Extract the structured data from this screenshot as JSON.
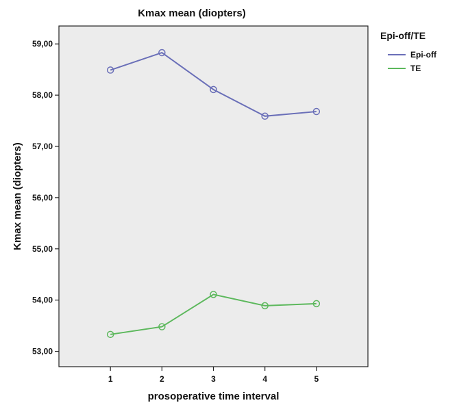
{
  "chart_data": {
    "type": "line",
    "title": "Kmax mean (diopters)",
    "xlabel": "prosoperative time interval",
    "ylabel": "Kmax mean (diopters)",
    "x": [
      1,
      2,
      3,
      4,
      5
    ],
    "x_tick_labels": [
      "1",
      "2",
      "3",
      "4",
      "5"
    ],
    "ylim": [
      52.7,
      59.35
    ],
    "y_ticks": [
      53,
      54,
      55,
      56,
      57,
      58,
      59
    ],
    "y_tick_labels": [
      "53,00",
      "54,00",
      "55,00",
      "56,00",
      "57,00",
      "58,00",
      "59,00"
    ],
    "grid": false,
    "legend": {
      "title": "Epi-off/TE",
      "placement": "right"
    },
    "series": [
      {
        "name": "Epi-off",
        "color": "#6a6fb8",
        "values": [
          58.49,
          58.83,
          58.11,
          57.59,
          57.68
        ]
      },
      {
        "name": "TE",
        "color": "#5cb85c",
        "values": [
          53.33,
          53.48,
          54.11,
          53.89,
          53.93
        ]
      }
    ]
  }
}
